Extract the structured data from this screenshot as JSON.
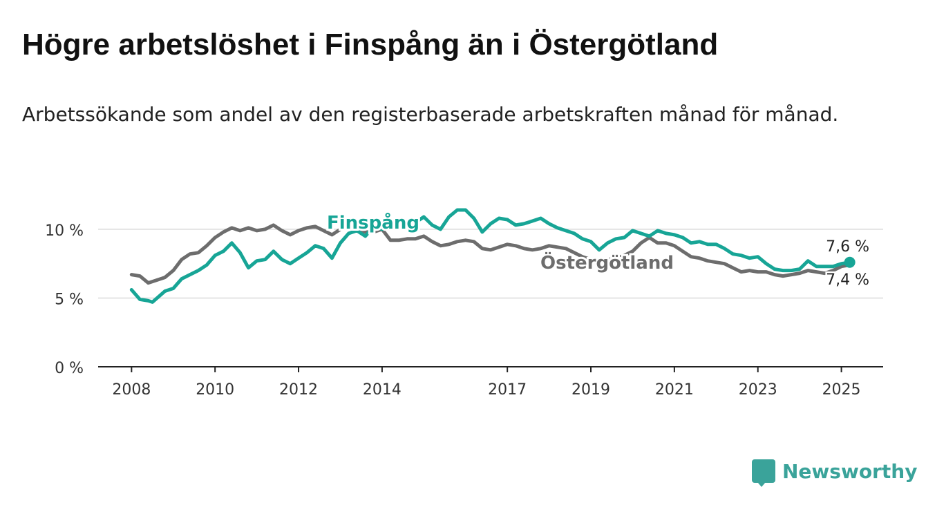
{
  "title": "Högre arbetslöshet i Finspång än i Östergötland",
  "subtitle": "Arbetssökande som andel av den registerbaserade arbetskraften månad för månad.",
  "brand": "Newsworthy",
  "colors": {
    "finspang": "#17a596",
    "ostergotland": "#6d6d6d",
    "grid": "#d9d9d9",
    "axis": "#222222"
  },
  "chart_data": {
    "type": "line",
    "x_range": [
      2007.2,
      2026.0
    ],
    "ylim": [
      0,
      11
    ],
    "y_ticks": [
      {
        "v": 0,
        "label": "0 %"
      },
      {
        "v": 5,
        "label": "5 %"
      },
      {
        "v": 10,
        "label": "10 %"
      }
    ],
    "x_ticks": [
      {
        "v": 2008,
        "label": "2008"
      },
      {
        "v": 2010,
        "label": "2010"
      },
      {
        "v": 2012,
        "label": "2012"
      },
      {
        "v": 2014,
        "label": "2014"
      },
      {
        "v": 2017,
        "label": "2017"
      },
      {
        "v": 2019,
        "label": "2019"
      },
      {
        "v": 2021,
        "label": "2021"
      },
      {
        "v": 2023,
        "label": "2023"
      },
      {
        "v": 2025,
        "label": "2025"
      }
    ],
    "series": [
      {
        "name": "Östergötland",
        "end_label": "7,4 %",
        "points": [
          [
            2008.0,
            6.7
          ],
          [
            2008.2,
            6.6
          ],
          [
            2008.4,
            6.1
          ],
          [
            2008.6,
            6.3
          ],
          [
            2008.8,
            6.5
          ],
          [
            2009.0,
            7.0
          ],
          [
            2009.2,
            7.8
          ],
          [
            2009.4,
            8.2
          ],
          [
            2009.6,
            8.3
          ],
          [
            2009.8,
            8.8
          ],
          [
            2010.0,
            9.4
          ],
          [
            2010.2,
            9.8
          ],
          [
            2010.4,
            10.1
          ],
          [
            2010.6,
            9.9
          ],
          [
            2010.8,
            10.1
          ],
          [
            2011.0,
            9.9
          ],
          [
            2011.2,
            10.0
          ],
          [
            2011.4,
            10.3
          ],
          [
            2011.6,
            9.9
          ],
          [
            2011.8,
            9.6
          ],
          [
            2012.0,
            9.9
          ],
          [
            2012.2,
            10.1
          ],
          [
            2012.4,
            10.2
          ],
          [
            2012.6,
            9.9
          ],
          [
            2012.8,
            9.6
          ],
          [
            2013.0,
            10.0
          ],
          [
            2013.2,
            10.2
          ],
          [
            2013.4,
            10.0
          ],
          [
            2013.6,
            9.8
          ],
          [
            2013.8,
            9.8
          ],
          [
            2014.0,
            10.0
          ],
          [
            2014.2,
            9.2
          ],
          [
            2014.4,
            9.2
          ],
          [
            2014.6,
            9.3
          ],
          [
            2014.8,
            9.3
          ],
          [
            2015.0,
            9.5
          ],
          [
            2015.2,
            9.1
          ],
          [
            2015.4,
            8.8
          ],
          [
            2015.6,
            8.9
          ],
          [
            2015.8,
            9.1
          ],
          [
            2016.0,
            9.2
          ],
          [
            2016.2,
            9.1
          ],
          [
            2016.4,
            8.6
          ],
          [
            2016.6,
            8.5
          ],
          [
            2016.8,
            8.7
          ],
          [
            2017.0,
            8.9
          ],
          [
            2017.2,
            8.8
          ],
          [
            2017.4,
            8.6
          ],
          [
            2017.6,
            8.5
          ],
          [
            2017.8,
            8.6
          ],
          [
            2018.0,
            8.8
          ],
          [
            2018.2,
            8.7
          ],
          [
            2018.4,
            8.6
          ],
          [
            2018.6,
            8.3
          ],
          [
            2018.8,
            8.0
          ],
          [
            2019.0,
            7.8
          ],
          [
            2019.2,
            7.6
          ],
          [
            2019.4,
            7.8
          ],
          [
            2019.6,
            7.9
          ],
          [
            2019.8,
            8.1
          ],
          [
            2020.0,
            8.4
          ],
          [
            2020.2,
            9.0
          ],
          [
            2020.4,
            9.4
          ],
          [
            2020.6,
            9.0
          ],
          [
            2020.8,
            9.0
          ],
          [
            2021.0,
            8.8
          ],
          [
            2021.2,
            8.4
          ],
          [
            2021.4,
            8.0
          ],
          [
            2021.6,
            7.9
          ],
          [
            2021.8,
            7.7
          ],
          [
            2022.0,
            7.6
          ],
          [
            2022.2,
            7.5
          ],
          [
            2022.4,
            7.2
          ],
          [
            2022.6,
            6.9
          ],
          [
            2022.8,
            7.0
          ],
          [
            2023.0,
            6.9
          ],
          [
            2023.2,
            6.9
          ],
          [
            2023.4,
            6.7
          ],
          [
            2023.6,
            6.6
          ],
          [
            2023.8,
            6.7
          ],
          [
            2024.0,
            6.8
          ],
          [
            2024.2,
            7.0
          ],
          [
            2024.4,
            6.9
          ],
          [
            2024.6,
            6.8
          ],
          [
            2024.8,
            7.0
          ],
          [
            2025.0,
            7.3
          ],
          [
            2025.2,
            7.4
          ]
        ]
      },
      {
        "name": "Finspång",
        "end_label": "7,6 %",
        "points": [
          [
            2008.0,
            5.6
          ],
          [
            2008.2,
            4.9
          ],
          [
            2008.4,
            4.8
          ],
          [
            2008.5,
            4.7
          ],
          [
            2008.8,
            5.5
          ],
          [
            2009.0,
            5.7
          ],
          [
            2009.2,
            6.4
          ],
          [
            2009.4,
            6.7
          ],
          [
            2009.6,
            7.0
          ],
          [
            2009.8,
            7.4
          ],
          [
            2010.0,
            8.1
          ],
          [
            2010.2,
            8.4
          ],
          [
            2010.4,
            9.0
          ],
          [
            2010.6,
            8.3
          ],
          [
            2010.8,
            7.2
          ],
          [
            2011.0,
            7.7
          ],
          [
            2011.2,
            7.8
          ],
          [
            2011.4,
            8.4
          ],
          [
            2011.6,
            7.8
          ],
          [
            2011.8,
            7.5
          ],
          [
            2012.0,
            7.9
          ],
          [
            2012.2,
            8.3
          ],
          [
            2012.4,
            8.8
          ],
          [
            2012.6,
            8.6
          ],
          [
            2012.8,
            7.9
          ],
          [
            2013.0,
            9.0
          ],
          [
            2013.2,
            9.7
          ],
          [
            2013.4,
            9.9
          ],
          [
            2013.6,
            9.5
          ],
          [
            2013.8,
            10.2
          ],
          [
            2014.0,
            10.0
          ],
          [
            2014.2,
            10.5
          ],
          [
            2014.4,
            10.4
          ],
          [
            2014.6,
            10.6
          ],
          [
            2014.8,
            10.5
          ],
          [
            2015.0,
            10.9
          ],
          [
            2015.2,
            10.3
          ],
          [
            2015.4,
            10.0
          ],
          [
            2015.6,
            10.9
          ],
          [
            2015.8,
            11.4
          ],
          [
            2016.0,
            11.4
          ],
          [
            2016.2,
            10.8
          ],
          [
            2016.4,
            9.8
          ],
          [
            2016.6,
            10.4
          ],
          [
            2016.8,
            10.8
          ],
          [
            2017.0,
            10.7
          ],
          [
            2017.2,
            10.3
          ],
          [
            2017.4,
            10.4
          ],
          [
            2017.6,
            10.6
          ],
          [
            2017.8,
            10.8
          ],
          [
            2018.0,
            10.4
          ],
          [
            2018.2,
            10.1
          ],
          [
            2018.4,
            9.9
          ],
          [
            2018.6,
            9.7
          ],
          [
            2018.8,
            9.3
          ],
          [
            2019.0,
            9.1
          ],
          [
            2019.2,
            8.5
          ],
          [
            2019.4,
            9.0
          ],
          [
            2019.6,
            9.3
          ],
          [
            2019.8,
            9.4
          ],
          [
            2020.0,
            9.9
          ],
          [
            2020.2,
            9.7
          ],
          [
            2020.4,
            9.5
          ],
          [
            2020.6,
            9.9
          ],
          [
            2020.8,
            9.7
          ],
          [
            2021.0,
            9.6
          ],
          [
            2021.2,
            9.4
          ],
          [
            2021.4,
            9.0
          ],
          [
            2021.6,
            9.1
          ],
          [
            2021.8,
            8.9
          ],
          [
            2022.0,
            8.9
          ],
          [
            2022.2,
            8.6
          ],
          [
            2022.4,
            8.2
          ],
          [
            2022.6,
            8.1
          ],
          [
            2022.8,
            7.9
          ],
          [
            2023.0,
            8.0
          ],
          [
            2023.2,
            7.5
          ],
          [
            2023.4,
            7.1
          ],
          [
            2023.6,
            7.0
          ],
          [
            2023.8,
            7.0
          ],
          [
            2024.0,
            7.1
          ],
          [
            2024.2,
            7.7
          ],
          [
            2024.4,
            7.3
          ],
          [
            2024.6,
            7.3
          ],
          [
            2024.8,
            7.3
          ],
          [
            2025.0,
            7.5
          ],
          [
            2025.2,
            7.6
          ]
        ]
      }
    ]
  }
}
